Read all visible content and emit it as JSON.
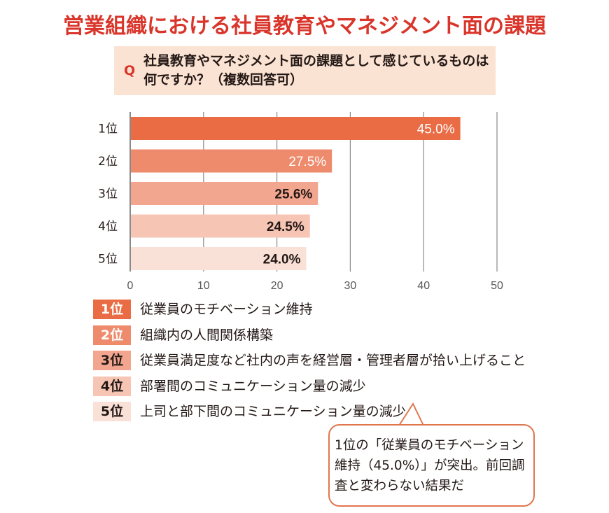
{
  "title": "営業組織における社員教育やマネジメント面の課題",
  "question": {
    "mark": "Q",
    "line1": "社員教育やマネジメント面の課題として感じているものは",
    "line2": "何ですか？（複数回答可）"
  },
  "colors": {
    "title": "#d9352b",
    "rank1": "#ea6c45",
    "rank2": "#ee8b6c",
    "rank3": "#f2a68f",
    "rank4": "#f6c5b4",
    "rank5": "#f9e1d8",
    "grid": "#8a8a8a",
    "question_bg": "#fbe3d3",
    "bubble_border": "#e0764e"
  },
  "chart_data": {
    "type": "bar",
    "orientation": "horizontal",
    "title": "営業組織における社員教育やマネジメント面の課題",
    "categories": [
      "1位",
      "2位",
      "3位",
      "4位",
      "5位"
    ],
    "values": [
      45.0,
      27.5,
      25.6,
      24.5,
      24.0
    ],
    "value_labels": [
      "45.0%",
      "27.5%",
      "25.6%",
      "24.5%",
      "24.0%"
    ],
    "xlim": [
      0,
      50
    ],
    "xticks": [
      0,
      10,
      20,
      30,
      40,
      50
    ],
    "xtick_labels": [
      "0",
      "10",
      "20",
      "30",
      "40",
      "50"
    ],
    "grid": true,
    "xlabel": "",
    "ylabel": "",
    "unit": "%"
  },
  "legend": [
    {
      "rank": "1位",
      "label": "従業員のモチベーション維持"
    },
    {
      "rank": "2位",
      "label": "組織内の人間関係構築"
    },
    {
      "rank": "3位",
      "label": "従業員満足度など社内の声を経営層・管理者層が拾い上げること"
    },
    {
      "rank": "4位",
      "label": "部署間のコミュニケーション量の減少"
    },
    {
      "rank": "5位",
      "label": "上司と部下間のコミュニケーション量の減少"
    }
  ],
  "callout": {
    "line1": "1位の「従業員のモチベーション",
    "line2": "維持（45.0%）」が突出。前回調",
    "line3": "査と変わらない結果だ"
  }
}
